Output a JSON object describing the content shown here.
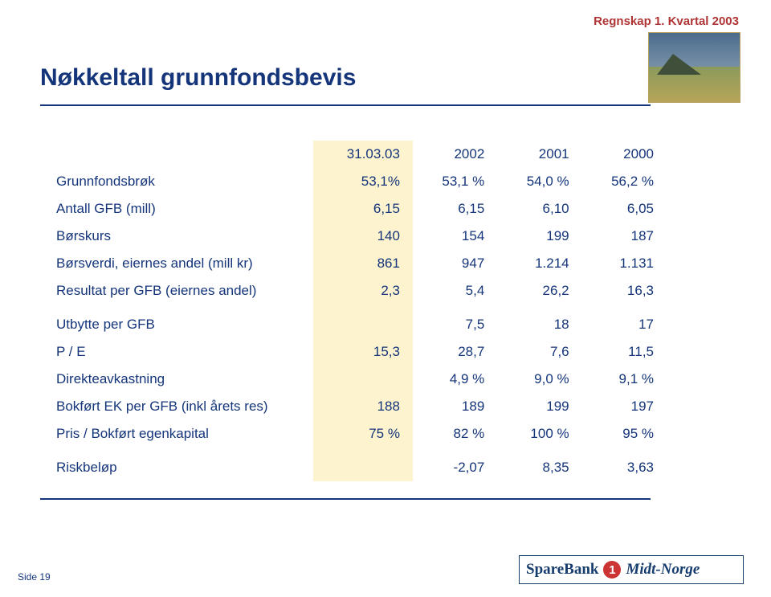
{
  "colors": {
    "header_text": "#b03434",
    "title_text": "#14357a",
    "body_text": "#14357a",
    "highlight_bg": "#fdf3cf",
    "rule": "#14357a",
    "footer_text": "#14357a"
  },
  "header": {
    "label": "Regnskap 1. Kvartal 2003"
  },
  "title": "Nøkkeltall grunnfondsbevis",
  "table": {
    "columns": [
      "",
      "31.03.03",
      "2002",
      "2001",
      "2000"
    ],
    "highlight_column_index": 1,
    "rows": [
      {
        "label": "Grunnfondsbrøk",
        "values": [
          "53,1%",
          "53,1 %",
          "54,0 %",
          "56,2 %"
        ]
      },
      {
        "label": "Antall GFB (mill)",
        "values": [
          "6,15",
          "6,15",
          "6,10",
          "6,05"
        ]
      },
      {
        "label": "Børskurs",
        "values": [
          "140",
          "154",
          "199",
          "187"
        ]
      },
      {
        "label": "Børsverdi, eiernes andel (mill kr)",
        "values": [
          "861",
          "947",
          "1.214",
          "1.131"
        ]
      },
      {
        "label": "Resultat per GFB (eiernes andel)",
        "values": [
          "2,3",
          "5,4",
          "26,2",
          "16,3"
        ]
      },
      {
        "label": "Utbytte per GFB",
        "values": [
          "",
          "7,5",
          "18",
          "17"
        ]
      },
      {
        "label": "P / E",
        "values": [
          "15,3",
          "28,7",
          "7,6",
          "11,5"
        ]
      },
      {
        "label": "Direkteavkastning",
        "values": [
          "",
          "4,9 %",
          "9,0 %",
          "9,1 %"
        ]
      },
      {
        "label": "Bokført EK per GFB (inkl årets res)",
        "values": [
          "188",
          "189",
          "199",
          "197"
        ]
      },
      {
        "label": "Pris / Bokført egenkapital",
        "values": [
          "75 %",
          "82 %",
          "100 %",
          "95 %"
        ]
      },
      {
        "label": "Riskbeløp",
        "values": [
          "",
          "-2,07",
          "8,35",
          "3,63"
        ]
      }
    ],
    "spacer_after_rows": [
      4,
      9
    ]
  },
  "footer": {
    "page_label": "Side 19",
    "logo_brand1": "SpareBank",
    "logo_circle": "1",
    "logo_brand2": "Midt-Norge"
  }
}
